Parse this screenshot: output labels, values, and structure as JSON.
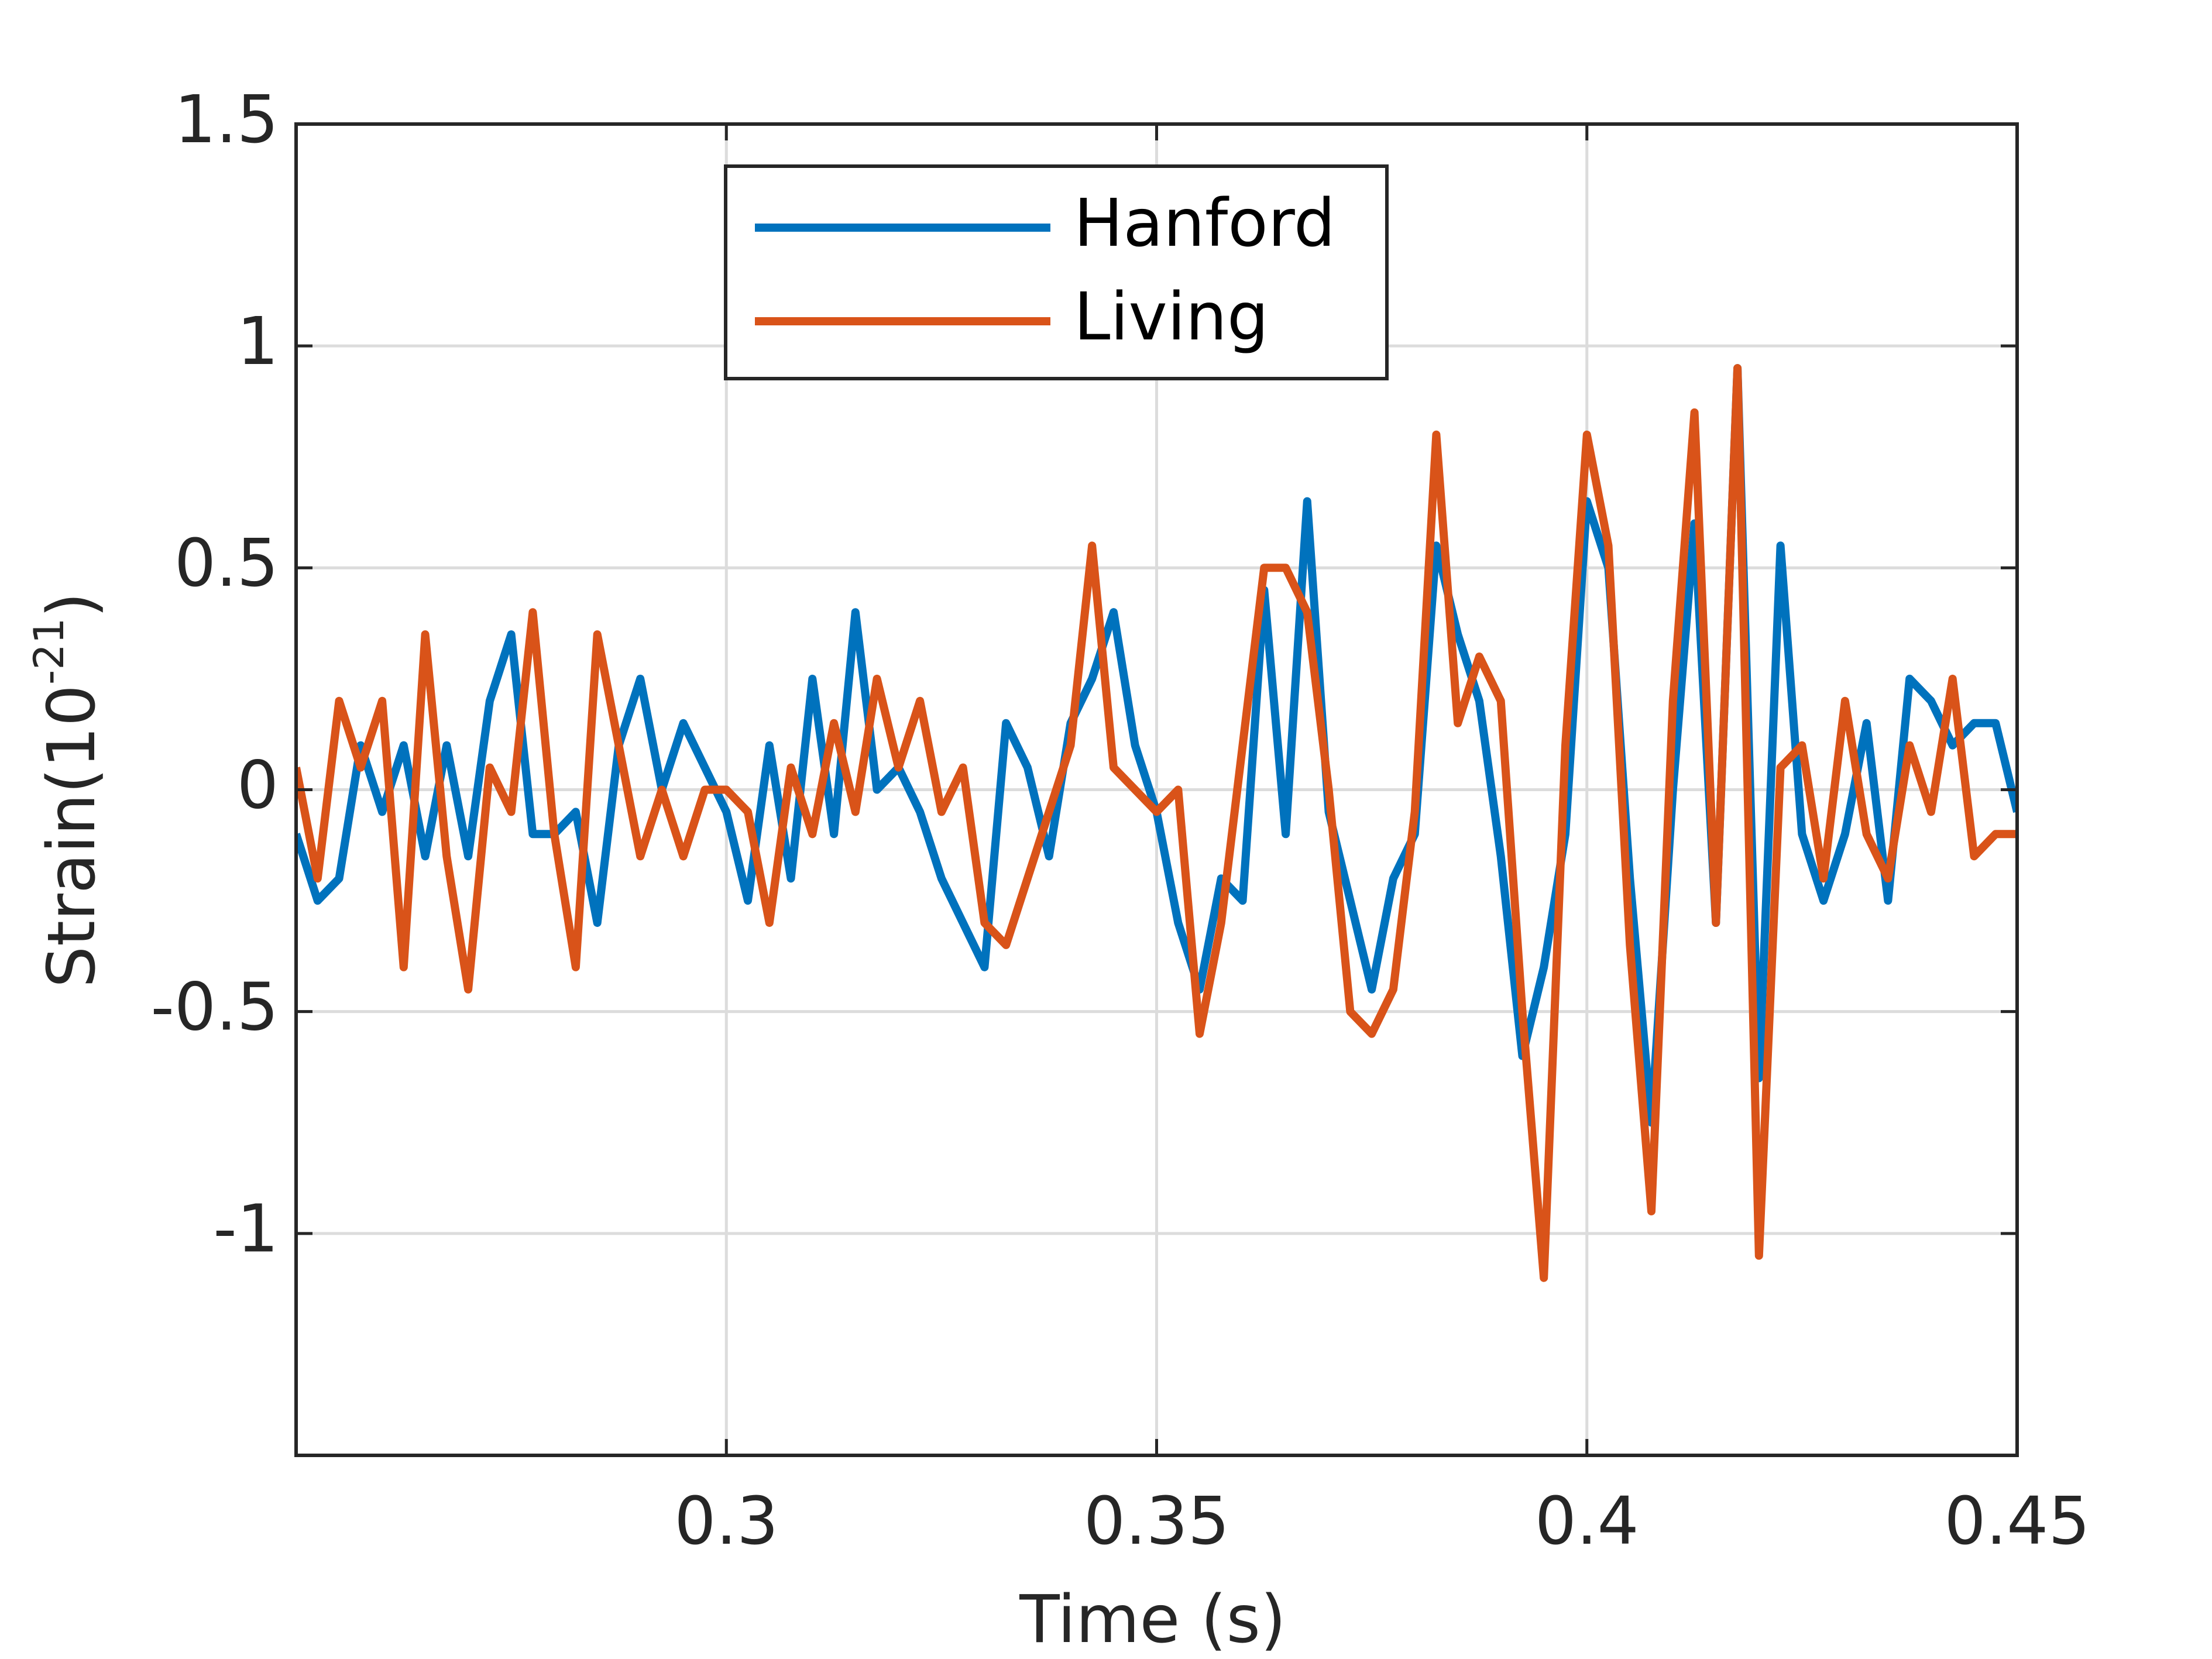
{
  "chart_data": {
    "type": "line",
    "xlabel": "Time (s)",
    "ylabel": [
      "Strain(10",
      "-21",
      ")"
    ],
    "xlim": [
      0.25,
      0.45
    ],
    "ylim": [
      -1.5,
      1.5
    ],
    "xticks": [
      0.3,
      0.35,
      0.4,
      0.45
    ],
    "yticks": [
      -1,
      -0.5,
      0,
      0.5,
      1,
      1.5
    ],
    "grid": true,
    "legend": "top",
    "x": [
      0.25,
      0.2525,
      0.255,
      0.2575,
      0.26,
      0.2625,
      0.265,
      0.2675,
      0.27,
      0.2725,
      0.275,
      0.2775,
      0.28,
      0.2825,
      0.285,
      0.2875,
      0.29,
      0.2925,
      0.295,
      0.2975,
      0.3,
      0.3025,
      0.305,
      0.3075,
      0.31,
      0.3125,
      0.315,
      0.3175,
      0.32,
      0.3225,
      0.325,
      0.3275,
      0.33,
      0.3325,
      0.335,
      0.3375,
      0.34,
      0.3425,
      0.345,
      0.3475,
      0.35,
      0.3525,
      0.355,
      0.3575,
      0.36,
      0.3625,
      0.365,
      0.3675,
      0.37,
      0.3725,
      0.375,
      0.3775,
      0.38,
      0.3825,
      0.385,
      0.3875,
      0.39,
      0.3925,
      0.395,
      0.3975,
      0.4,
      0.4025,
      0.405,
      0.4075,
      0.41,
      0.4125,
      0.415,
      0.4175,
      0.42,
      0.4225,
      0.425,
      0.4275,
      0.43,
      0.4325,
      0.435,
      0.4375,
      0.44,
      0.4425,
      0.445,
      0.4475,
      0.45
    ],
    "series": [
      {
        "name": "Hanford",
        "color": "#0072bd",
        "values": [
          -0.1,
          -0.25,
          -0.2,
          0.1,
          -0.05,
          0.1,
          -0.15,
          0.1,
          -0.15,
          0.2,
          0.35,
          -0.1,
          -0.1,
          -0.05,
          -0.3,
          0.1,
          0.25,
          0.0,
          0.15,
          0.05,
          -0.05,
          -0.25,
          0.1,
          -0.2,
          0.25,
          -0.1,
          0.4,
          0.0,
          0.05,
          -0.05,
          -0.2,
          -0.3,
          -0.4,
          0.15,
          0.05,
          -0.15,
          0.15,
          0.25,
          0.4,
          0.1,
          -0.05,
          -0.3,
          -0.45,
          -0.2,
          -0.25,
          0.45,
          -0.1,
          0.65,
          -0.05,
          -0.25,
          -0.45,
          -0.2,
          -0.1,
          0.55,
          0.35,
          0.2,
          -0.15,
          -0.6,
          -0.4,
          -0.1,
          0.65,
          0.5,
          -0.2,
          -0.75,
          0.0,
          0.6,
          -0.3,
          0.95,
          -0.65,
          0.55,
          -0.1,
          -0.25,
          -0.1,
          0.15,
          -0.25,
          0.25,
          0.2,
          0.1,
          0.15,
          0.15,
          -0.05
        ]
      },
      {
        "name": "Living",
        "color": "#d95319",
        "values": [
          0.05,
          -0.2,
          0.2,
          0.05,
          0.2,
          -0.4,
          0.35,
          -0.15,
          -0.45,
          0.05,
          -0.05,
          0.4,
          -0.1,
          -0.4,
          0.35,
          0.1,
          -0.15,
          0.0,
          -0.15,
          0.0,
          0.0,
          -0.05,
          -0.3,
          0.05,
          -0.1,
          0.15,
          -0.05,
          0.25,
          0.05,
          0.2,
          -0.05,
          0.05,
          -0.3,
          -0.35,
          -0.2,
          -0.05,
          0.1,
          0.55,
          0.05,
          0.0,
          -0.05,
          0.0,
          -0.55,
          -0.3,
          0.1,
          0.5,
          0.5,
          0.4,
          0.0,
          -0.5,
          -0.55,
          -0.45,
          -0.05,
          0.8,
          0.15,
          0.3,
          0.2,
          -0.5,
          -1.1,
          0.1,
          0.8,
          0.55,
          -0.35,
          -0.95,
          0.2,
          0.85,
          -0.3,
          0.95,
          -1.05,
          0.05,
          0.1,
          -0.2,
          0.2,
          -0.1,
          -0.2,
          0.1,
          -0.05,
          0.25,
          -0.15,
          -0.1,
          -0.1
        ]
      }
    ]
  }
}
